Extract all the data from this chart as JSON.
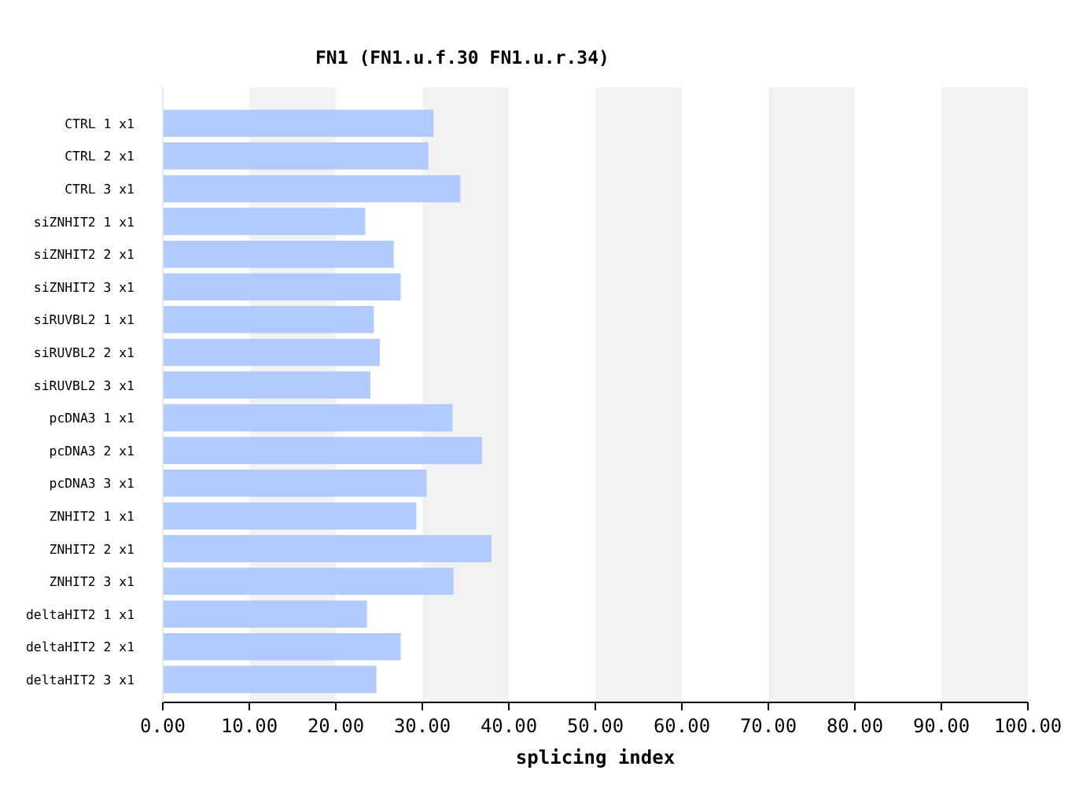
{
  "chart_data": {
    "type": "bar",
    "orientation": "horizontal",
    "title": "FN1 (FN1.u.f.30  FN1.u.r.34)",
    "xlabel": "splicing index",
    "categories": [
      "CTRL 1 x1",
      "CTRL 2 x1",
      "CTRL 3 x1",
      "siZNHIT2 1 x1",
      "siZNHIT2 2 x1",
      "siZNHIT2 3 x1",
      "siRUVBL2 1 x1",
      "siRUVBL2 2 x1",
      "siRUVBL2 3 x1",
      "pcDNA3 1 x1",
      "pcDNA3 2 x1",
      "pcDNA3 3 x1",
      "ZNHIT2 1 x1",
      "ZNHIT2 2 x1",
      "ZNHIT2 3 x1",
      "deltaHIT2 1 x1",
      "deltaHIT2 2 x1",
      "deltaHIT2 3 x1"
    ],
    "values": [
      31.3,
      30.7,
      34.4,
      23.4,
      26.7,
      27.5,
      24.4,
      25.1,
      24.0,
      33.5,
      36.9,
      30.5,
      29.3,
      38.0,
      33.6,
      23.6,
      27.5,
      24.7
    ],
    "color": "#b2cafe",
    "xlim": [
      0,
      100
    ],
    "xticks": [
      {
        "value": 0,
        "label": "0.00"
      },
      {
        "value": 10,
        "label": "10.00"
      },
      {
        "value": 20,
        "label": "20.00"
      },
      {
        "value": 30,
        "label": "30.00"
      },
      {
        "value": 40,
        "label": "40.00"
      },
      {
        "value": 50,
        "label": "50.00"
      },
      {
        "value": 60,
        "label": "60.00"
      },
      {
        "value": 70,
        "label": "70.00"
      },
      {
        "value": 80,
        "label": "80.00"
      },
      {
        "value": 90,
        "label": "90.00"
      },
      {
        "value": 100,
        "label": "100.00"
      }
    ],
    "bands": [
      {
        "axis": "x",
        "from": 10,
        "to": 20,
        "color": "#f2f2f2"
      },
      {
        "axis": "x",
        "from": 30,
        "to": 40,
        "color": "#f2f2f2"
      },
      {
        "axis": "x",
        "from": 50,
        "to": 60,
        "color": "#f2f2f2"
      },
      {
        "axis": "x",
        "from": 70,
        "to": 80,
        "color": "#f2f2f2"
      },
      {
        "axis": "x",
        "from": 90,
        "to": 100,
        "color": "#f2f2f2"
      }
    ]
  }
}
